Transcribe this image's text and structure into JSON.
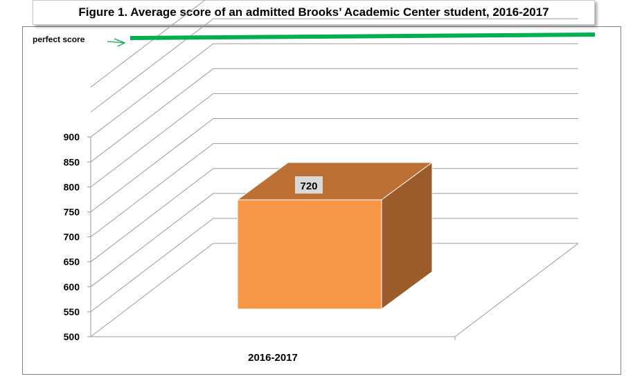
{
  "chart_data": {
    "type": "bar",
    "title": "Figure 1. Average score of an admitted Brooks’ Academic Center student, 2016-2017",
    "categories": [
      "2016-2017"
    ],
    "values": [
      720
    ],
    "data_labels": [
      "720"
    ],
    "ylim": [
      500,
      1000
    ],
    "y_ticks": [
      "500",
      "550",
      "600",
      "650",
      "700",
      "750",
      "800",
      "850",
      "900"
    ],
    "grid": true,
    "three_d": true,
    "bar_colors": {
      "front": "#f79646",
      "top": "#bd7033",
      "side": "#9c5b2a"
    },
    "reference_line": {
      "label": "perfect score",
      "color": "#00b050"
    }
  }
}
